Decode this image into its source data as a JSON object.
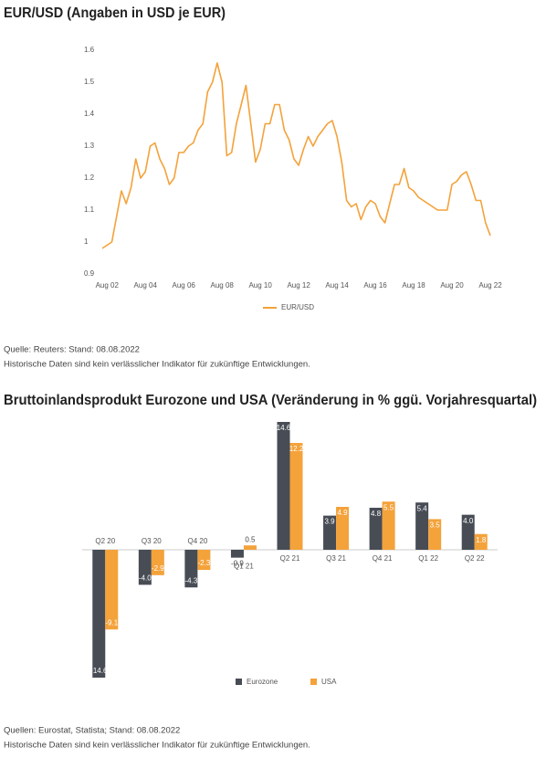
{
  "chart_data": [
    {
      "type": "line",
      "title": "EUR/USD (Angaben in USD je EUR)",
      "x": [
        "2002-05",
        "2002-08",
        "2002-11",
        "2003-02",
        "2003-05",
        "2003-08",
        "2003-11",
        "2004-02",
        "2004-05",
        "2004-08",
        "2004-11",
        "2005-02",
        "2005-05",
        "2005-08",
        "2005-11",
        "2006-02",
        "2006-05",
        "2006-08",
        "2006-11",
        "2007-02",
        "2007-05",
        "2007-08",
        "2007-11",
        "2008-02",
        "2008-05",
        "2008-08",
        "2008-11",
        "2009-02",
        "2009-05",
        "2009-08",
        "2009-11",
        "2010-02",
        "2010-05",
        "2010-08",
        "2010-11",
        "2011-02",
        "2011-05",
        "2011-08",
        "2011-11",
        "2012-02",
        "2012-05",
        "2012-08",
        "2012-11",
        "2013-02",
        "2013-05",
        "2013-08",
        "2013-11",
        "2014-02",
        "2014-05",
        "2014-08",
        "2014-11",
        "2015-02",
        "2015-05",
        "2015-08",
        "2015-11",
        "2016-02",
        "2016-05",
        "2016-08",
        "2016-11",
        "2017-02",
        "2017-05",
        "2017-08",
        "2017-11",
        "2018-02",
        "2018-05",
        "2018-08",
        "2018-11",
        "2019-02",
        "2019-05",
        "2019-08",
        "2019-11",
        "2020-02",
        "2020-05",
        "2020-08",
        "2020-11",
        "2021-02",
        "2021-05",
        "2021-08",
        "2021-11",
        "2022-02",
        "2022-05",
        "2022-08"
      ],
      "series": [
        {
          "name": "EUR/USD",
          "color": "#f4a23a",
          "values": [
            0.98,
            0.99,
            1.0,
            1.08,
            1.16,
            1.12,
            1.17,
            1.26,
            1.2,
            1.22,
            1.3,
            1.31,
            1.26,
            1.23,
            1.18,
            1.2,
            1.28,
            1.28,
            1.3,
            1.31,
            1.35,
            1.37,
            1.47,
            1.5,
            1.56,
            1.5,
            1.27,
            1.28,
            1.37,
            1.43,
            1.49,
            1.37,
            1.25,
            1.29,
            1.37,
            1.37,
            1.43,
            1.43,
            1.35,
            1.32,
            1.26,
            1.24,
            1.29,
            1.33,
            1.3,
            1.33,
            1.35,
            1.37,
            1.38,
            1.33,
            1.25,
            1.13,
            1.11,
            1.12,
            1.07,
            1.11,
            1.13,
            1.12,
            1.08,
            1.06,
            1.12,
            1.18,
            1.18,
            1.23,
            1.17,
            1.16,
            1.14,
            1.13,
            1.12,
            1.11,
            1.1,
            1.1,
            1.1,
            1.18,
            1.19,
            1.21,
            1.22,
            1.18,
            1.13,
            1.13,
            1.06,
            1.02
          ]
        }
      ],
      "xlim": [
        "2002-01",
        "2022-08"
      ],
      "xticks": [
        {
          "value": "2002-08",
          "label": "Aug 02"
        },
        {
          "value": "2004-08",
          "label": "Aug 04"
        },
        {
          "value": "2006-08",
          "label": "Aug 06"
        },
        {
          "value": "2008-08",
          "label": "Aug 08"
        },
        {
          "value": "2010-08",
          "label": "Aug 10"
        },
        {
          "value": "2012-08",
          "label": "Aug 12"
        },
        {
          "value": "2014-08",
          "label": "Aug 14"
        },
        {
          "value": "2016-08",
          "label": "Aug 16"
        },
        {
          "value": "2018-08",
          "label": "Aug 18"
        },
        {
          "value": "2020-08",
          "label": "Aug 20"
        },
        {
          "value": "2022-08",
          "label": "Aug 22"
        }
      ],
      "ylim": [
        0.9,
        1.6
      ],
      "yticks": [
        0.9,
        1,
        1.1,
        1.2,
        1.3,
        1.4,
        1.5,
        1.6
      ],
      "source": "Quelle: Reuters: Stand: 08.08.2022",
      "note": "Historische Daten sind kein verlässlicher Indikator für zukünftige Entwicklungen."
    },
    {
      "type": "bar",
      "title": "Bruttoinlandsprodukt Eurozone und USA (Veränderung in % ggü. Vorjahresquartal)",
      "categories": [
        "Q2 20",
        "Q3 20",
        "Q4 20",
        "Q1 21",
        "Q2 21",
        "Q3 21",
        "Q4 21",
        "Q1 22",
        "Q2 22"
      ],
      "series": [
        {
          "name": "Eurozone",
          "color": "#474c55",
          "values": [
            -14.6,
            -4.0,
            -4.3,
            -0.9,
            14.6,
            3.9,
            4.8,
            5.4,
            4.0
          ],
          "value_labels": [
            "-14.6",
            "-4.0",
            "-4.3",
            "-0.9",
            "14.6",
            "3.9",
            "4.8",
            "5.4",
            "4.0"
          ]
        },
        {
          "name": "USA",
          "color": "#f4a23a",
          "values": [
            -9.1,
            -2.9,
            -2.3,
            0.5,
            12.2,
            4.9,
            5.5,
            3.5,
            1.8
          ],
          "value_labels": [
            "-9.1",
            "-2.9",
            "-2.3",
            "0.5",
            "12.2",
            "4.9",
            "5.5",
            "3.5",
            "1.8"
          ]
        }
      ],
      "source": "Quellen: Eurostat, Statista; Stand: 08.08.2022",
      "note": "Historische Daten sind kein verlässlicher Indikator für zukünftige Entwicklungen."
    }
  ]
}
